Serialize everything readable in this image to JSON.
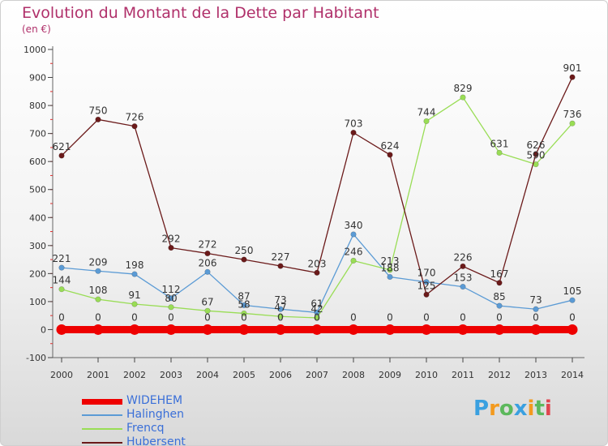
{
  "chart_data": {
    "type": "line",
    "title": "Evolution du Montant de la Dette par Habitant",
    "subtitle": "(en €)",
    "x": [
      "2000",
      "2001",
      "2002",
      "2003",
      "2004",
      "2005",
      "2006",
      "2007",
      "2008",
      "2009",
      "2010",
      "2011",
      "2012",
      "2013",
      "2014"
    ],
    "ylim": [
      -100,
      1000
    ],
    "yticks": [
      -100,
      0,
      100,
      200,
      300,
      400,
      500,
      600,
      700,
      800,
      900,
      1000
    ],
    "grid": false,
    "legend_position": "bottom-left",
    "series": [
      {
        "name": "WIDEHEM",
        "color": "#ee0000",
        "values": [
          0,
          0,
          0,
          0,
          0,
          0,
          0,
          0,
          0,
          0,
          0,
          0,
          0,
          0,
          0
        ]
      },
      {
        "name": "Halinghen",
        "color": "#5b9bd5",
        "values": [
          221,
          209,
          198,
          112,
          206,
          87,
          73,
          61,
          340,
          188,
          170,
          153,
          85,
          73,
          105
        ]
      },
      {
        "name": "Frencq",
        "color": "#99dd55",
        "values": [
          144,
          108,
          91,
          80,
          67,
          58,
          47,
          42,
          246,
          213,
          744,
          829,
          631,
          590,
          736
        ]
      },
      {
        "name": "Hubersent",
        "color": "#6b1a1a",
        "values": [
          621,
          750,
          726,
          292,
          272,
          250,
          227,
          203,
          703,
          624,
          125,
          226,
          167,
          626,
          901
        ]
      }
    ]
  },
  "logo": {
    "letters": [
      "P",
      "r",
      "o",
      "x",
      "i",
      "t",
      "i"
    ],
    "colors": [
      "#3aa0e0",
      "#f39a1e",
      "#5cb85c",
      "#3aa0e0",
      "#f39a1e",
      "#5cb85c",
      "#e0454f"
    ]
  }
}
